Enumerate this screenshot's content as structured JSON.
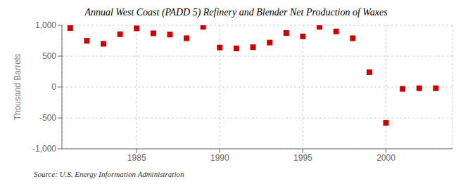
{
  "chart_data": {
    "type": "scatter",
    "title": "Annual West Coast (PADD 5) Refinery and Blender Net Production of Waxes",
    "y_label": "Thousand Barrels",
    "annotations": [
      "Source: U.S. Energy Information Administration"
    ],
    "x": [
      1981,
      1982,
      1983,
      1984,
      1985,
      1986,
      1987,
      1988,
      1989,
      1990,
      1991,
      1992,
      1993,
      1994,
      1995,
      1996,
      1997,
      1998,
      1999,
      2000,
      2001,
      2002,
      2003
    ],
    "values": [
      955,
      750,
      700,
      855,
      950,
      870,
      850,
      790,
      975,
      640,
      625,
      645,
      720,
      875,
      820,
      975,
      900,
      790,
      240,
      -580,
      -30,
      -20,
      -20
    ],
    "color": "#cc0000",
    "marker": "square",
    "xlim": [
      1980.5,
      2004
    ],
    "xticks": [
      1985,
      1990,
      1995,
      2000
    ],
    "ylim": [
      -1000,
      1000
    ],
    "yticks": [
      {
        "value": -1000,
        "label": "-1,000"
      },
      -500,
      0,
      500,
      {
        "value": 1000,
        "label": "1,000"
      }
    ],
    "grid": true
  }
}
